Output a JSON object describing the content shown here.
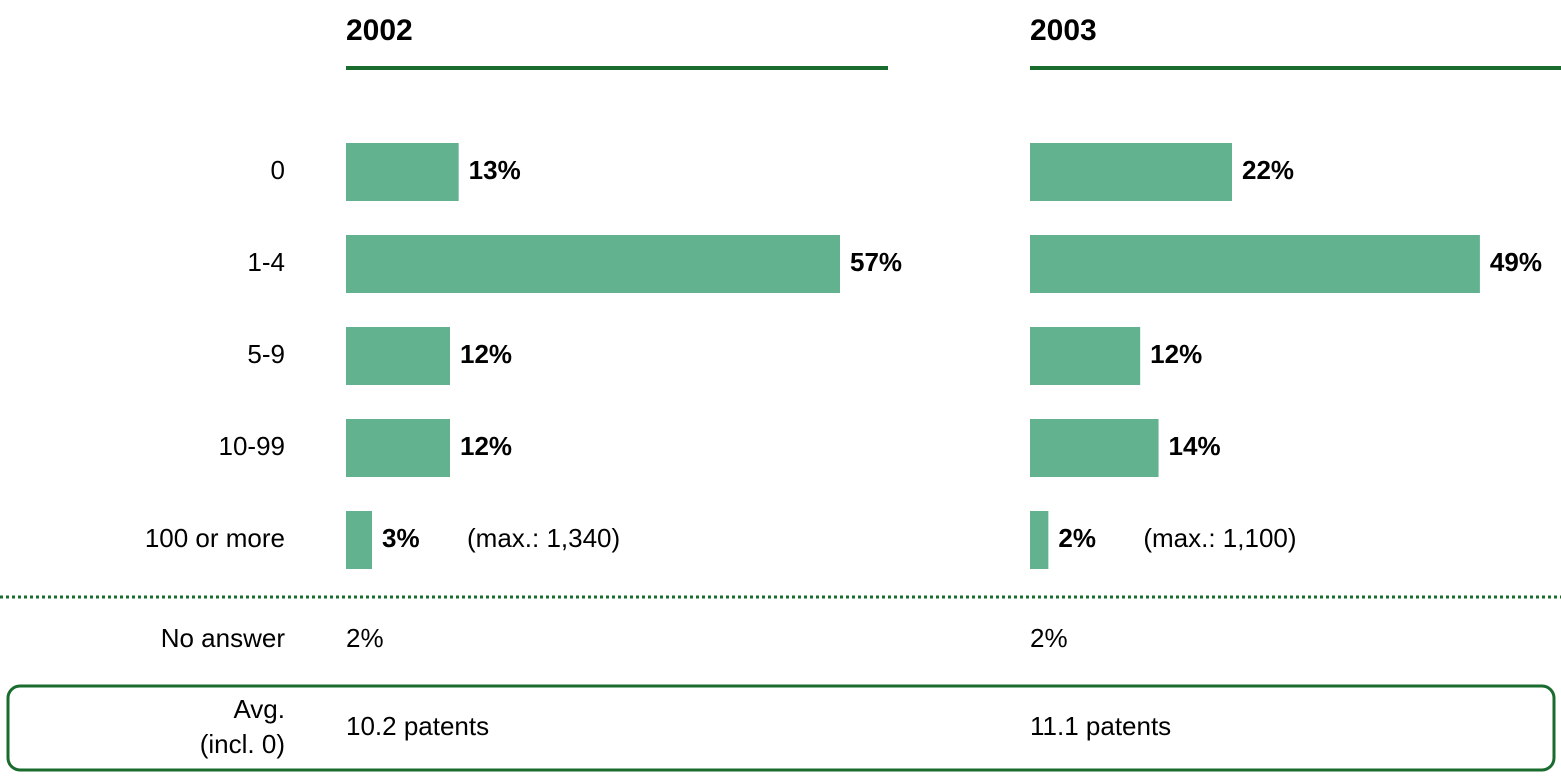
{
  "categories": [
    "0",
    "1-4",
    "5-9",
    "10-99",
    "100 or more"
  ],
  "no_answer_label": "No answer",
  "average_label": [
    "Avg.",
    "(incl. 0)"
  ],
  "chart_data": [
    {
      "type": "bar",
      "title": "2002",
      "values": [
        13,
        57,
        12,
        12,
        3
      ],
      "value_labels": [
        "13%",
        "57%",
        "12%",
        "12%",
        "3%"
      ],
      "annotation": "(max.: 1,340)",
      "no_answer": "2%",
      "average": "10.2 patents",
      "color": "#62b290",
      "xlim": [
        0,
        60
      ]
    },
    {
      "type": "bar",
      "title": "2003",
      "values": [
        22,
        49,
        12,
        14,
        2
      ],
      "value_labels": [
        "22%",
        "49%",
        "12%",
        "14%",
        "2%"
      ],
      "annotation": "(max.: 1,100)",
      "no_answer": "2%",
      "average": "11.1 patents",
      "color": "#62b290",
      "xlim": [
        0,
        55
      ]
    }
  ]
}
